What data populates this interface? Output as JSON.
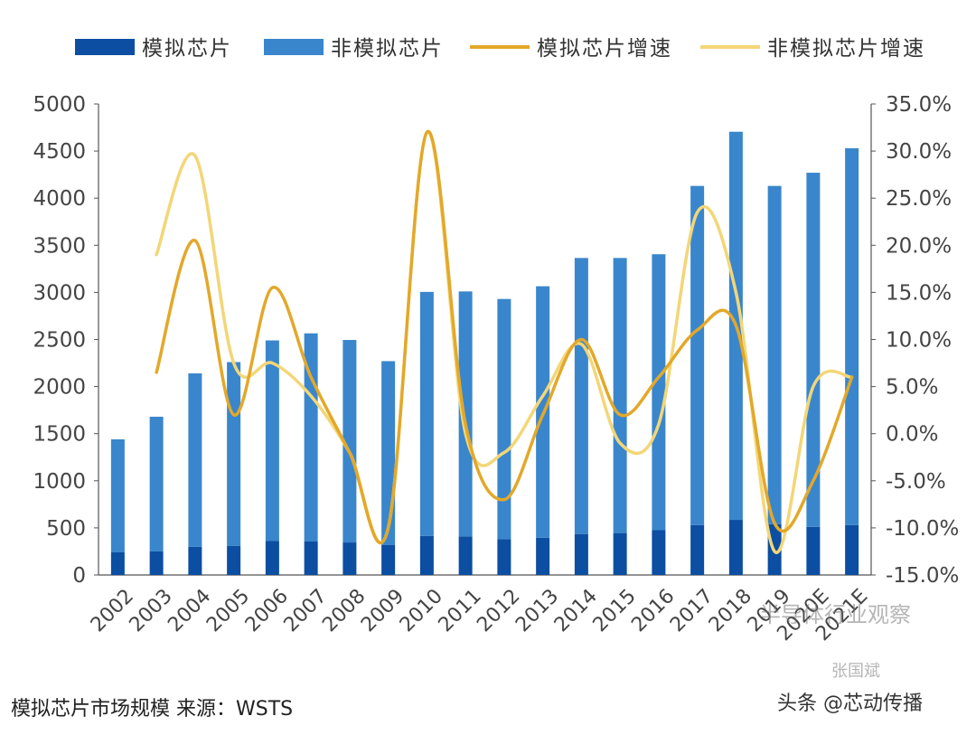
{
  "chart_data": {
    "type": "bar",
    "title": "",
    "categories": [
      "2002",
      "2003",
      "2004",
      "2005",
      "2006",
      "2007",
      "2008",
      "2009",
      "2010",
      "2011",
      "2012",
      "2013",
      "2014",
      "2015",
      "2016",
      "2017",
      "2018",
      "2019",
      "2020E",
      "2021E"
    ],
    "series": [
      {
        "name": "模拟芯片",
        "kind": "bar-stack",
        "color": "#0b4ea2",
        "values": [
          240,
          250,
          300,
          310,
          360,
          355,
          345,
          320,
          415,
          410,
          380,
          395,
          435,
          445,
          475,
          530,
          585,
          540,
          510,
          530
        ]
      },
      {
        "name": "非模拟芯片",
        "kind": "bar-stack",
        "color": "#3a86cc",
        "values": [
          1200,
          1430,
          1840,
          1950,
          2130,
          2210,
          2150,
          1950,
          2590,
          2600,
          2550,
          2670,
          2930,
          2920,
          2930,
          3600,
          4120,
          3590,
          3760,
          4000
        ]
      },
      {
        "name": "模拟芯片增速",
        "kind": "line",
        "axis": "right",
        "color": "#e3a82a",
        "values": [
          null,
          6.5,
          20.5,
          2,
          15.5,
          6,
          -2,
          -10,
          32,
          1,
          -7,
          2,
          10,
          2,
          6,
          11,
          11.5,
          -9.5,
          -5,
          6
        ]
      },
      {
        "name": "非模拟芯片增速",
        "kind": "line",
        "axis": "right",
        "color": "#f3d677",
        "values": [
          null,
          19,
          29.5,
          7.5,
          7.5,
          4,
          -2,
          -10,
          32,
          0,
          -2,
          4,
          9.5,
          -1,
          1,
          23.5,
          15,
          -12.5,
          5,
          6
        ]
      }
    ],
    "y_left": {
      "min": 0,
      "max": 5000,
      "ticks": [
        "0",
        "500",
        "1000",
        "1500",
        "2000",
        "2500",
        "3000",
        "3500",
        "4000",
        "4500",
        "5000"
      ]
    },
    "y_right": {
      "min": -15,
      "max": 35,
      "ticks": [
        "-15.0%",
        "-10.0%",
        "-5.0%",
        "0.0%",
        "5.0%",
        "10.0%",
        "15.0%",
        "20.0%",
        "25.0%",
        "30.0%",
        "35.0%"
      ]
    },
    "legend_position": "top",
    "grid": false
  },
  "caption": "模拟芯片市场规模 来源：WSTS",
  "watermarks": {
    "bottom_right": "头条 @芯动传播",
    "middle": "半导体行业观察",
    "small": "张国斌"
  }
}
